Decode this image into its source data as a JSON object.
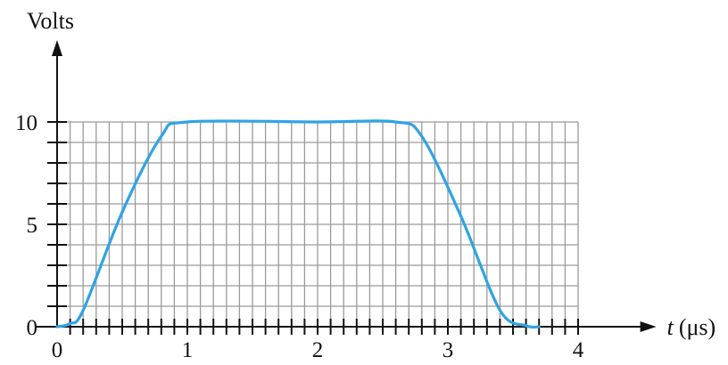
{
  "chart_data": {
    "type": "line",
    "ylabel": "Volts",
    "xlabel_var": "t",
    "xlabel_unit": "(μs)",
    "x_ticks": [
      "0",
      "1",
      "2",
      "3",
      "4"
    ],
    "y_ticks": [
      "0",
      "5",
      "10"
    ],
    "xlim": [
      0,
      4
    ],
    "ylim": [
      0,
      10
    ],
    "y_axis_max": 14,
    "x_axis_max": 4.6,
    "grid": true,
    "grid_step_x": 0.1,
    "grid_step_y": 1,
    "series": [
      {
        "color": "#2fa3e6",
        "x": [
          0.0,
          0.1,
          0.2,
          0.5,
          0.8,
          1.0,
          2.0,
          2.6,
          2.8,
          3.1,
          3.4,
          3.6,
          3.7
        ],
        "y": [
          0.0,
          0.15,
          0.8,
          5.6,
          9.3,
          10.0,
          10.0,
          10.0,
          9.3,
          5.4,
          0.8,
          0.05,
          0.0
        ]
      }
    ]
  }
}
